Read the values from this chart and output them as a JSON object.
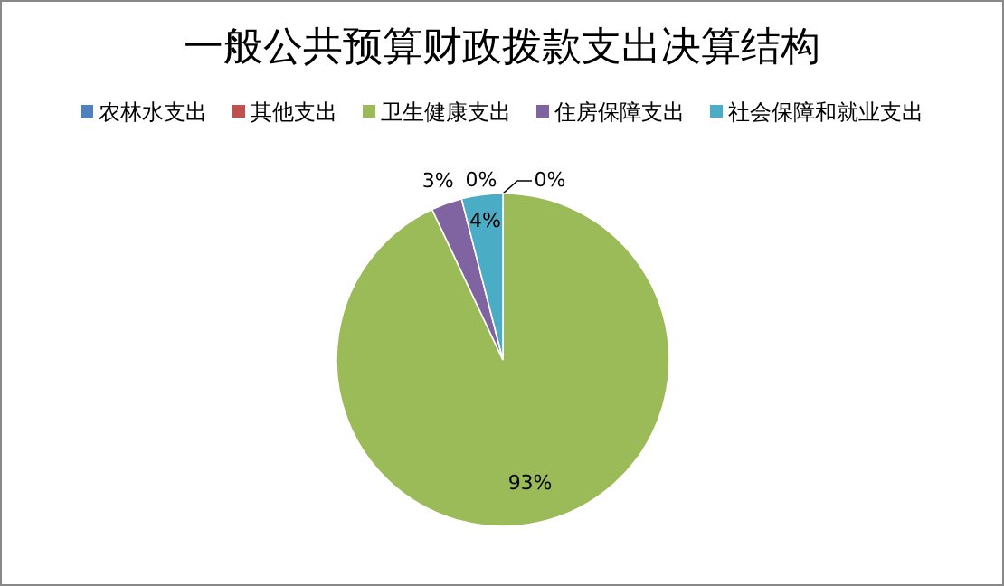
{
  "chart_data": {
    "type": "pie",
    "title": "一般公共预算财政拨款支出决算结构",
    "categories": [
      "农林水支出",
      "其他支出",
      "卫生健康支出",
      "住房保障支出",
      "社会保障和就业支出"
    ],
    "values": [
      0,
      0,
      93,
      3,
      4
    ],
    "colors": [
      "#4f81bd",
      "#c0504d",
      "#9bbb59",
      "#8064a2",
      "#4bacc6"
    ],
    "value_labels": [
      "0%",
      "0%",
      "93%",
      "3%",
      "4%"
    ],
    "legend": "top"
  }
}
